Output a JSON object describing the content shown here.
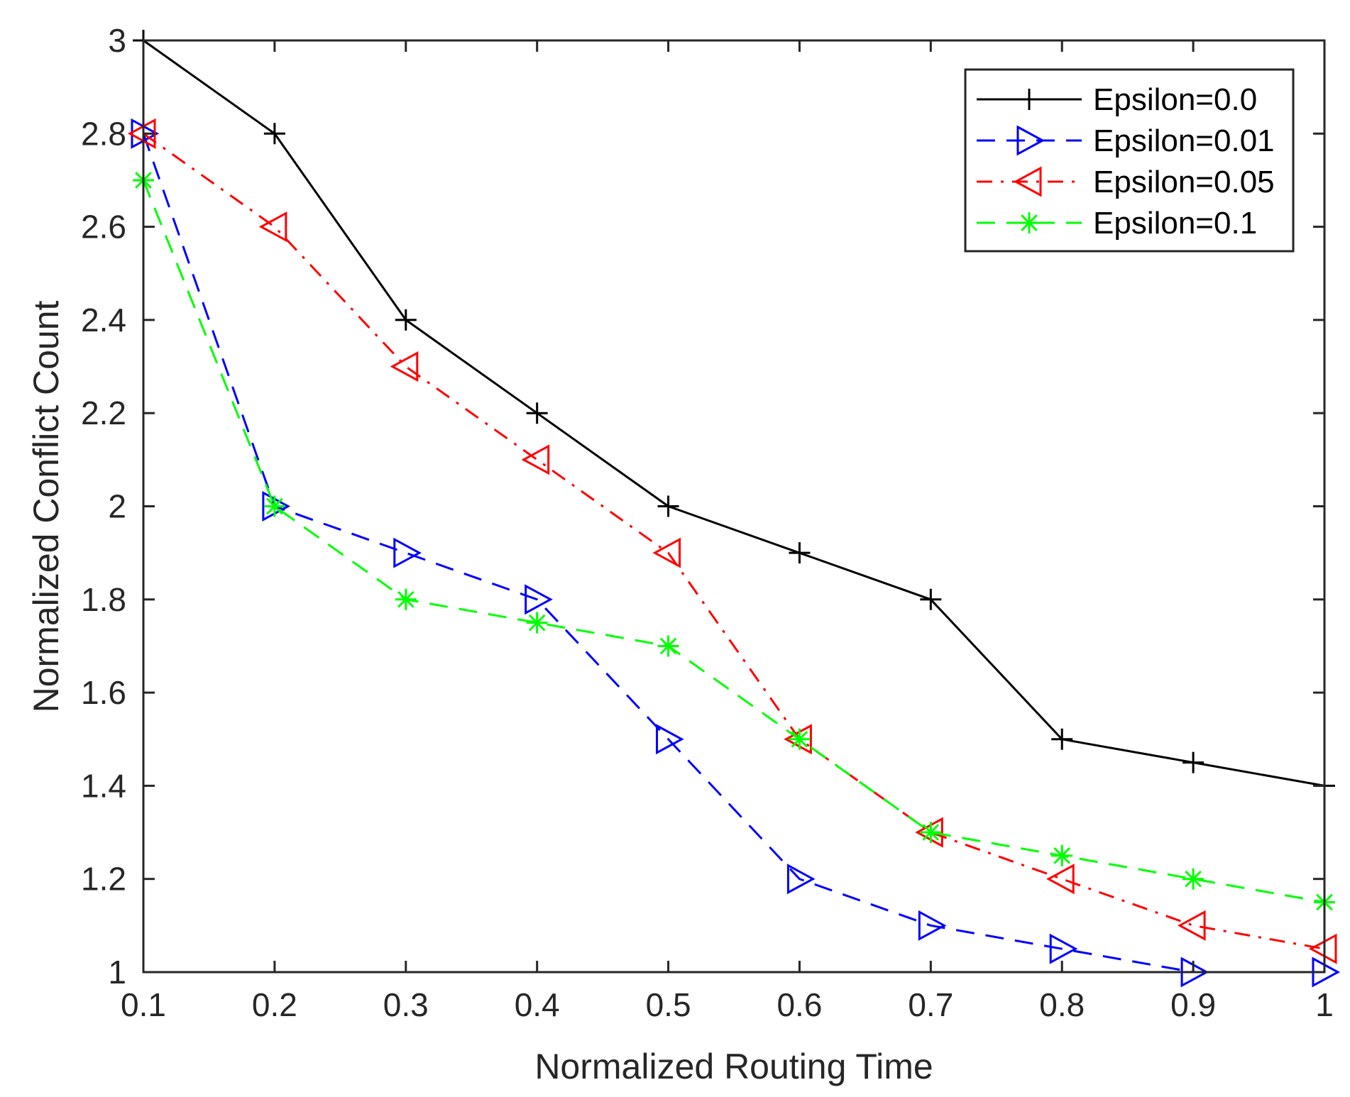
{
  "chart_data": {
    "type": "line",
    "title": "",
    "xlabel": "Normalized Routing Time",
    "ylabel": "Normalized Conflict Count",
    "xlim": [
      0.1,
      1.0
    ],
    "ylim": [
      1.0,
      3.0
    ],
    "xticks": [
      0.1,
      0.2,
      0.3,
      0.4,
      0.5,
      0.6,
      0.7,
      0.8,
      0.9,
      1.0
    ],
    "xtick_labels": [
      "0.1",
      "0.2",
      "0.3",
      "0.4",
      "0.5",
      "0.6",
      "0.7",
      "0.8",
      "0.9",
      "1"
    ],
    "yticks": [
      1.0,
      1.2,
      1.4,
      1.6,
      1.8,
      2.0,
      2.2,
      2.4,
      2.6,
      2.8,
      3.0
    ],
    "ytick_labels": [
      "1",
      "1.2",
      "1.4",
      "1.6",
      "1.8",
      "2",
      "2.2",
      "2.4",
      "2.6",
      "2.8",
      "3"
    ],
    "grid": false,
    "legend_position": "top-right",
    "x": [
      0.1,
      0.2,
      0.3,
      0.4,
      0.5,
      0.6,
      0.7,
      0.8,
      0.9,
      1.0
    ],
    "series": [
      {
        "name": "Epsilon=0.0",
        "color": "#000000",
        "dash": "solid",
        "marker": "plus",
        "values": [
          3.0,
          2.8,
          2.4,
          2.2,
          2.0,
          1.9,
          1.8,
          1.5,
          1.45,
          1.4
        ]
      },
      {
        "name": "Epsilon=0.01",
        "color": "#0000ff",
        "dash": "dashed",
        "marker": "triangle-right",
        "values": [
          2.8,
          2.0,
          1.9,
          1.8,
          1.5,
          1.2,
          1.1,
          1.05,
          1.0,
          1.0
        ]
      },
      {
        "name": "Epsilon=0.05",
        "color": "#ff0000",
        "dash": "dashdot",
        "marker": "triangle-left",
        "values": [
          2.8,
          2.6,
          2.3,
          2.1,
          1.9,
          1.5,
          1.3,
          1.2,
          1.1,
          1.05
        ]
      },
      {
        "name": "Epsilon=0.1",
        "color": "#00ff00",
        "dash": "dashed",
        "marker": "asterisk",
        "values": [
          2.7,
          2.0,
          1.8,
          1.75,
          1.7,
          1.5,
          1.3,
          1.25,
          1.2,
          1.15
        ]
      }
    ]
  }
}
